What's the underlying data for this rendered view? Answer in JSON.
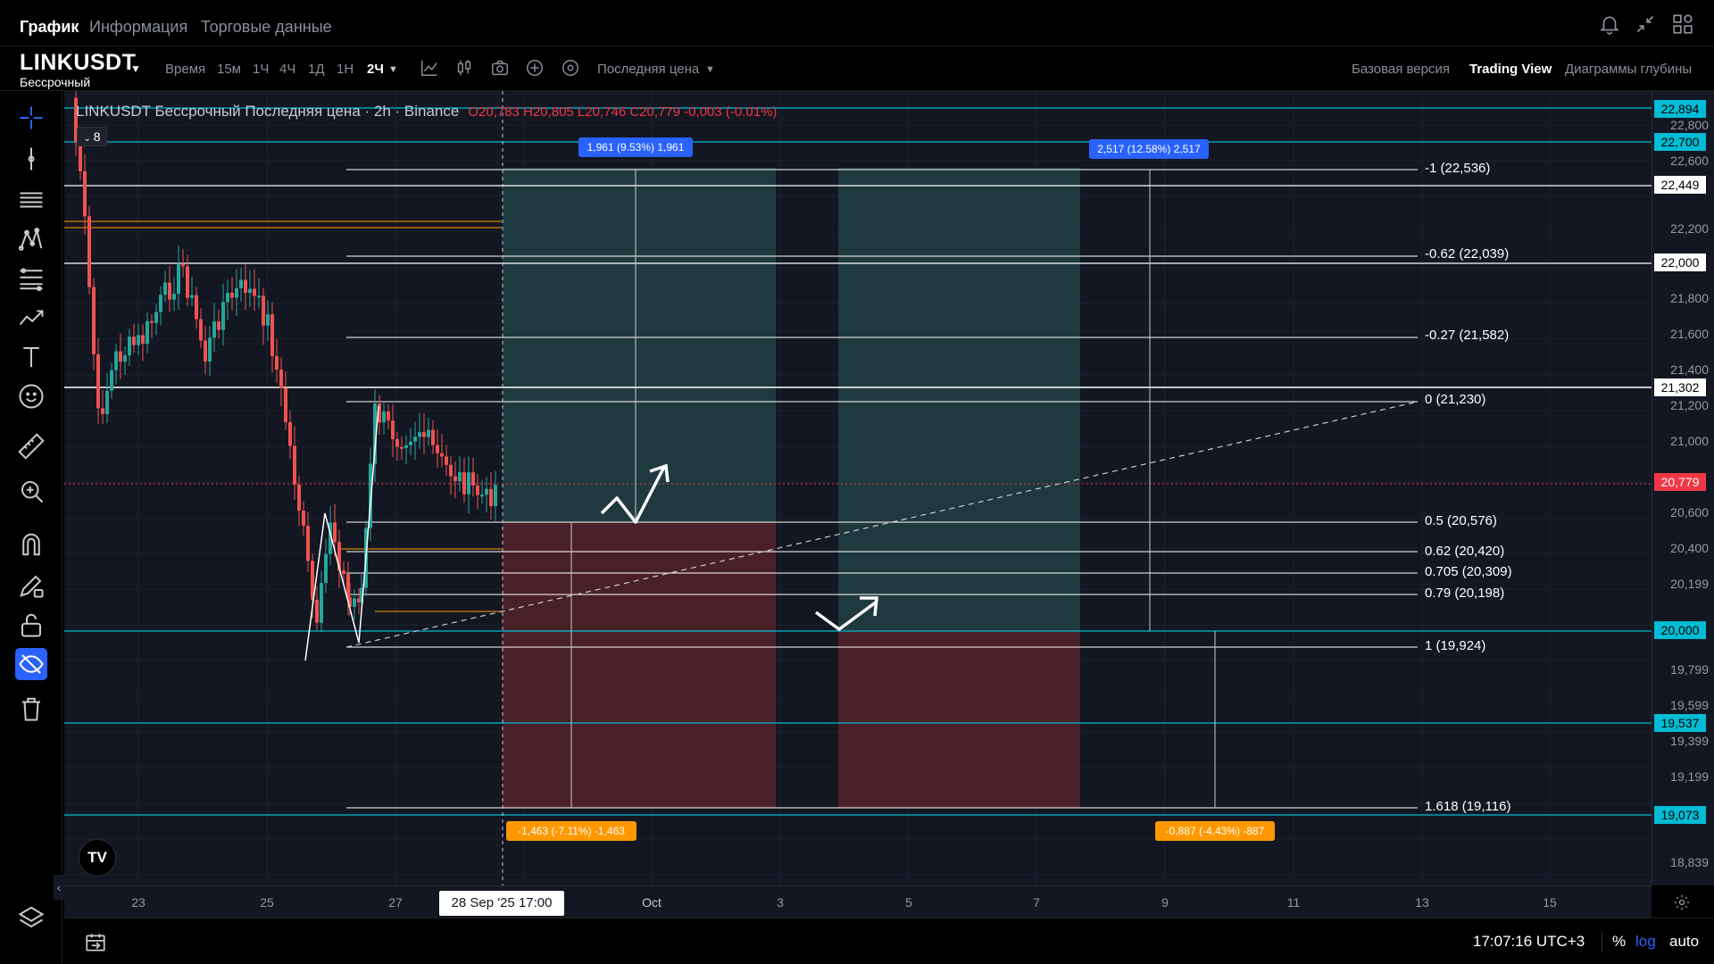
{
  "top_tabs": [
    {
      "label": "График",
      "active": true
    },
    {
      "label": "Информация",
      "active": false
    },
    {
      "label": "Торговые данные",
      "active": false
    }
  ],
  "toolbar": {
    "symbol": "LINKUSDT",
    "symbol_type": "Бессрочный",
    "time_label": "Время",
    "intervals": [
      "15м",
      "1Ч",
      "4Ч",
      "1Д",
      "1Н",
      "2Ч"
    ],
    "active_interval": "2Ч",
    "price_type": "Последняя цена",
    "views": [
      "Базовая версия",
      "Trading View",
      "Диаграммы глубины"
    ],
    "active_view": "Trading View"
  },
  "legend": {
    "title": "LINKUSDT Бессрочный Последняя цена · 2h · Binance",
    "ohlc": "O20,783 H20,805 L20,746 C20,779 -0,003 (-0.01%)",
    "indicator_count": "8"
  },
  "price_scale": {
    "ticks": [
      "22,800",
      "22,600",
      "22,200",
      "21,800",
      "21,600",
      "21,400",
      "21,200",
      "21,000",
      "20,600",
      "20,400",
      "20,199",
      "19,799",
      "19,599",
      "19,399",
      "19,199",
      "18,839"
    ],
    "tags": [
      {
        "label": "22,894",
        "color": "#00bcd4",
        "text": "#000"
      },
      {
        "label": "22,700",
        "color": "#00bcd4",
        "text": "#000"
      },
      {
        "label": "22,449",
        "color": "#ffffff",
        "text": "#000"
      },
      {
        "label": "22,000",
        "color": "#ffffff",
        "text": "#000"
      },
      {
        "label": "21,302",
        "color": "#ffffff",
        "text": "#000"
      },
      {
        "label": "20,779",
        "color": "#f23645",
        "text": "#fff"
      },
      {
        "label": "20,000",
        "color": "#00bcd4",
        "text": "#000"
      },
      {
        "label": "19,537",
        "color": "#00bcd4",
        "text": "#000"
      },
      {
        "label": "19,073",
        "color": "#00bcd4",
        "text": "#000"
      }
    ]
  },
  "time_scale": {
    "labels": [
      "23",
      "25",
      "27",
      "Oct",
      "3",
      "5",
      "7",
      "9",
      "11",
      "13",
      "15"
    ],
    "crosshair_date": "28 Sep '25    17:00"
  },
  "fib_levels": [
    {
      "label": "-1 (22,536)"
    },
    {
      "label": "-0.62 (22,039)"
    },
    {
      "label": "-0.27 (21,582)"
    },
    {
      "label": "0 (21,230)"
    },
    {
      "label": "0.5 (20,576)"
    },
    {
      "label": "0.62 (20,420)"
    },
    {
      "label": "0.705 (20,309)"
    },
    {
      "label": "0.79 (20,198)"
    },
    {
      "label": "1 (19,924)"
    },
    {
      "label": "1.618 (19,116)"
    }
  ],
  "measures": {
    "long1_target": "1,961 (9.53%) 1,961",
    "long1_stop": "-1,463 (-7.11%) -1,463",
    "long2_target": "2,517 (12.58%) 2,517",
    "long2_stop": "-0,887 (-4.43%) -887"
  },
  "bottom_bar": {
    "clock": "17:07:16 UTC+3",
    "percent": "%",
    "log": "log",
    "auto": "auto"
  },
  "logo_text": "TV",
  "left_tools": [
    "crosshair-icon",
    "trendline-icon",
    "horizontal-lines-icon",
    "pattern-icon",
    "fib-icon",
    "projection-icon",
    "text-icon",
    "emoji-icon",
    "ruler-icon",
    "zoom-icon",
    "magnet-icon",
    "pencil-lock-icon",
    "lock-icon",
    "eye-hide-icon",
    "trash-icon",
    "layers-icon"
  ]
}
